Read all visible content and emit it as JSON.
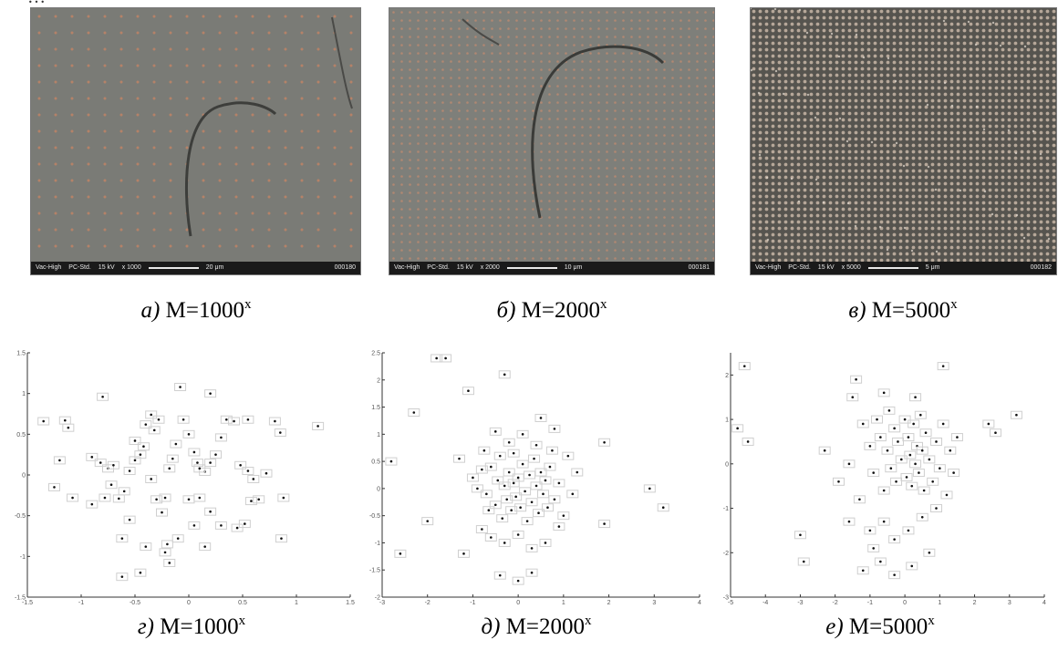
{
  "page": {
    "top_fragment": "…"
  },
  "sem_images": [
    {
      "id": "a",
      "hv": "Vac-High",
      "mode": "PC-Std.",
      "kv": "15 kV",
      "mag": "x 1000",
      "scale": "20 μm",
      "file": "000180",
      "grid": 18,
      "dot_color": "#c08466",
      "bg": "#7a7b76"
    },
    {
      "id": "b",
      "hv": "Vac-High",
      "mode": "PC-Std.",
      "kv": "15 kV",
      "mag": "x 2000",
      "scale": "10 μm",
      "file": "000181",
      "grid": 9,
      "dot_color": "#b98a72",
      "bg": "#7e7f7a"
    },
    {
      "id": "c",
      "hv": "Vac-High",
      "mode": "PC-Std.",
      "kv": "15 kV",
      "mag": "x 5000",
      "scale": "5 μm",
      "file": "000182",
      "grid": 7,
      "dot_color": "#c7b6a6",
      "bg": "#56544f"
    }
  ],
  "captions": [
    {
      "letter": "а)",
      "text": " M=1000",
      "sup": "x"
    },
    {
      "letter": "б)",
      "text": " M=2000",
      "sup": "x"
    },
    {
      "letter": "в)",
      "text": " M=5000",
      "sup": "x"
    },
    {
      "letter": "г)",
      "text": " M=1000",
      "sup": "x"
    },
    {
      "letter": "д)",
      "text": " M=2000",
      "sup": "x"
    },
    {
      "letter": "е)",
      "text": " M=5000",
      "sup": "x"
    }
  ],
  "chart_data": [
    {
      "type": "scatter",
      "title": "",
      "xlim": [
        -1.5,
        1.5
      ],
      "ylim": [
        -1.5,
        1.5
      ],
      "xticks": [
        -1.5,
        -1,
        -0.5,
        0,
        0.5,
        1,
        1.5
      ],
      "yticks": [
        -1.5,
        -1,
        -0.5,
        0,
        0.5,
        1,
        1.5
      ],
      "points": [
        [
          -1.35,
          0.66
        ],
        [
          -1.15,
          0.67
        ],
        [
          -1.12,
          0.58
        ],
        [
          -1.25,
          -0.15
        ],
        [
          -1.08,
          -0.28
        ],
        [
          -1.2,
          0.18
        ],
        [
          -0.82,
          0.15
        ],
        [
          -0.75,
          0.08
        ],
        [
          -0.7,
          0.12
        ],
        [
          -0.9,
          -0.36
        ],
        [
          -0.78,
          -0.28
        ],
        [
          -0.65,
          -0.29
        ],
        [
          -0.6,
          -0.2
        ],
        [
          -0.55,
          0.05
        ],
        [
          -0.5,
          0.18
        ],
        [
          -0.45,
          0.25
        ],
        [
          -0.42,
          0.35
        ],
        [
          -0.5,
          0.42
        ],
        [
          -0.4,
          0.62
        ],
        [
          -0.32,
          0.55
        ],
        [
          -0.35,
          -0.05
        ],
        [
          -0.3,
          -0.3
        ],
        [
          -0.22,
          -0.28
        ],
        [
          -0.18,
          0.08
        ],
        [
          -0.15,
          0.2
        ],
        [
          -0.12,
          0.38
        ],
        [
          -0.05,
          0.68
        ],
        [
          0.0,
          0.5
        ],
        [
          0.05,
          0.28
        ],
        [
          0.08,
          0.15
        ],
        [
          0.0,
          -0.3
        ],
        [
          0.1,
          -0.28
        ],
        [
          0.15,
          0.04
        ],
        [
          0.2,
          0.15
        ],
        [
          0.25,
          0.25
        ],
        [
          0.3,
          0.46
        ],
        [
          0.35,
          0.68
        ],
        [
          0.42,
          0.66
        ],
        [
          0.48,
          0.12
        ],
        [
          0.55,
          0.05
        ],
        [
          0.6,
          -0.05
        ],
        [
          0.65,
          -0.3
        ],
        [
          0.72,
          0.02
        ],
        [
          0.8,
          0.66
        ],
        [
          0.85,
          0.52
        ],
        [
          0.88,
          -0.28
        ],
        [
          1.2,
          0.6
        ],
        [
          -0.62,
          -0.78
        ],
        [
          -0.55,
          -0.55
        ],
        [
          -0.4,
          -0.88
        ],
        [
          -0.2,
          -0.85
        ],
        [
          -0.1,
          -0.78
        ],
        [
          0.05,
          -0.62
        ],
        [
          0.15,
          -0.88
        ],
        [
          0.3,
          -0.62
        ],
        [
          0.45,
          -0.65
        ],
        [
          0.52,
          -0.6
        ],
        [
          0.86,
          -0.78
        ],
        [
          -0.45,
          -1.2
        ],
        [
          -0.18,
          -1.08
        ],
        [
          -0.22,
          -0.95
        ],
        [
          -0.62,
          -1.25
        ],
        [
          -0.8,
          0.96
        ],
        [
          -0.35,
          0.74
        ],
        [
          -0.08,
          1.08
        ],
        [
          0.2,
          1.0
        ],
        [
          -0.28,
          0.68
        ],
        [
          0.55,
          0.68
        ],
        [
          -0.25,
          -0.46
        ],
        [
          0.2,
          -0.45
        ],
        [
          0.58,
          -0.32
        ],
        [
          -0.72,
          -0.12
        ],
        [
          -0.9,
          0.22
        ],
        [
          0.1,
          0.08
        ]
      ]
    },
    {
      "type": "scatter",
      "title": "",
      "xlim": [
        -3,
        4
      ],
      "ylim": [
        -2,
        2.5
      ],
      "xticks": [
        -3,
        -2,
        -1,
        0,
        1,
        2,
        3,
        4
      ],
      "yticks": [
        -2,
        -1.5,
        -1,
        -0.5,
        0,
        0.5,
        1,
        1.5,
        2,
        2.5
      ],
      "points": [
        [
          -1.8,
          2.4
        ],
        [
          -1.6,
          2.4
        ],
        [
          -0.3,
          2.1
        ],
        [
          -2.3,
          1.4
        ],
        [
          -1.1,
          1.8
        ],
        [
          -2.8,
          0.5
        ],
        [
          -2.6,
          -1.2
        ],
        [
          -2.0,
          -0.6
        ],
        [
          -1.3,
          0.55
        ],
        [
          -1.0,
          0.2
        ],
        [
          -0.9,
          0.0
        ],
        [
          -0.8,
          0.35
        ],
        [
          -0.7,
          -0.1
        ],
        [
          -0.6,
          0.4
        ],
        [
          -0.5,
          -0.3
        ],
        [
          -0.45,
          0.15
        ],
        [
          -0.4,
          0.6
        ],
        [
          -0.35,
          -0.55
        ],
        [
          -0.3,
          0.05
        ],
        [
          -0.25,
          -0.2
        ],
        [
          -0.2,
          0.3
        ],
        [
          -0.15,
          -0.4
        ],
        [
          -0.1,
          0.1
        ],
        [
          -0.05,
          -0.15
        ],
        [
          0.0,
          0.2
        ],
        [
          0.05,
          -0.35
        ],
        [
          0.1,
          0.45
        ],
        [
          0.15,
          -0.05
        ],
        [
          0.2,
          -0.6
        ],
        [
          0.25,
          0.25
        ],
        [
          0.3,
          -0.25
        ],
        [
          0.35,
          0.55
        ],
        [
          0.4,
          0.05
        ],
        [
          0.45,
          -0.45
        ],
        [
          0.5,
          0.3
        ],
        [
          0.55,
          -0.1
        ],
        [
          0.6,
          0.15
        ],
        [
          0.65,
          -0.35
        ],
        [
          0.7,
          0.4
        ],
        [
          0.8,
          -0.2
        ],
        [
          0.9,
          0.1
        ],
        [
          1.0,
          -0.5
        ],
        [
          1.1,
          0.6
        ],
        [
          1.2,
          -0.1
        ],
        [
          1.3,
          0.3
        ],
        [
          -0.6,
          -0.9
        ],
        [
          -0.3,
          -1.0
        ],
        [
          0.0,
          -0.85
        ],
        [
          0.3,
          -1.1
        ],
        [
          0.6,
          -1.0
        ],
        [
          -0.8,
          -0.75
        ],
        [
          -1.2,
          -1.2
        ],
        [
          0.5,
          1.3
        ],
        [
          0.8,
          1.1
        ],
        [
          0.1,
          1.0
        ],
        [
          -0.5,
          1.05
        ],
        [
          -0.2,
          0.85
        ],
        [
          0.4,
          0.8
        ],
        [
          -0.4,
          -1.6
        ],
        [
          0.0,
          -1.7
        ],
        [
          0.3,
          -1.55
        ],
        [
          1.9,
          0.85
        ],
        [
          1.9,
          -0.65
        ],
        [
          2.9,
          0.0
        ],
        [
          3.2,
          -0.35
        ],
        [
          -0.75,
          0.7
        ],
        [
          -0.1,
          0.65
        ],
        [
          0.75,
          0.7
        ],
        [
          -0.65,
          -0.4
        ],
        [
          0.9,
          -0.7
        ]
      ]
    },
    {
      "type": "scatter",
      "title": "",
      "xlim": [
        -5,
        4
      ],
      "ylim": [
        -3,
        2.5
      ],
      "xticks": [
        -5,
        -4,
        -3,
        -2,
        -1,
        0,
        1,
        2,
        3,
        4
      ],
      "yticks": [
        -3,
        -2,
        -1,
        0,
        1,
        2
      ],
      "points": [
        [
          -4.6,
          2.2
        ],
        [
          -4.8,
          0.8
        ],
        [
          -4.5,
          0.5
        ],
        [
          -3.0,
          -1.6
        ],
        [
          -2.9,
          -2.2
        ],
        [
          -1.9,
          -0.4
        ],
        [
          -1.6,
          -1.3
        ],
        [
          -1.5,
          1.5
        ],
        [
          -1.2,
          0.9
        ],
        [
          -1.0,
          0.4
        ],
        [
          -0.9,
          -0.2
        ],
        [
          -0.8,
          1.0
        ],
        [
          -0.7,
          0.6
        ],
        [
          -0.6,
          -0.6
        ],
        [
          -0.5,
          0.3
        ],
        [
          -0.45,
          1.2
        ],
        [
          -0.4,
          -0.1
        ],
        [
          -0.3,
          0.8
        ],
        [
          -0.25,
          -0.4
        ],
        [
          -0.2,
          0.5
        ],
        [
          -0.1,
          0.1
        ],
        [
          0.0,
          1.0
        ],
        [
          0.05,
          -0.3
        ],
        [
          0.1,
          0.6
        ],
        [
          0.15,
          0.2
        ],
        [
          0.2,
          -0.5
        ],
        [
          0.25,
          0.9
        ],
        [
          0.3,
          0.0
        ],
        [
          0.35,
          0.4
        ],
        [
          0.4,
          -0.2
        ],
        [
          0.45,
          1.1
        ],
        [
          0.5,
          0.3
        ],
        [
          0.55,
          -0.6
        ],
        [
          0.6,
          0.7
        ],
        [
          0.7,
          0.1
        ],
        [
          0.8,
          -0.4
        ],
        [
          0.9,
          0.5
        ],
        [
          1.0,
          -0.1
        ],
        [
          1.1,
          0.9
        ],
        [
          1.2,
          -0.7
        ],
        [
          1.3,
          0.3
        ],
        [
          1.5,
          0.6
        ],
        [
          -1.3,
          -0.8
        ],
        [
          -1.0,
          -1.5
        ],
        [
          -0.6,
          -1.3
        ],
        [
          -0.3,
          -1.7
        ],
        [
          0.1,
          -1.5
        ],
        [
          0.5,
          -1.2
        ],
        [
          0.9,
          -1.0
        ],
        [
          0.7,
          -2.0
        ],
        [
          0.2,
          -2.3
        ],
        [
          -0.3,
          -2.5
        ],
        [
          -0.7,
          -2.2
        ],
        [
          -1.2,
          -2.4
        ],
        [
          1.1,
          2.2
        ],
        [
          -1.4,
          1.9
        ],
        [
          2.4,
          0.9
        ],
        [
          3.2,
          1.1
        ],
        [
          2.6,
          0.7
        ],
        [
          -2.3,
          0.3
        ],
        [
          -0.6,
          1.6
        ],
        [
          0.3,
          1.5
        ],
        [
          -1.6,
          0.0
        ],
        [
          1.4,
          -0.2
        ],
        [
          -0.9,
          -1.9
        ]
      ]
    }
  ]
}
